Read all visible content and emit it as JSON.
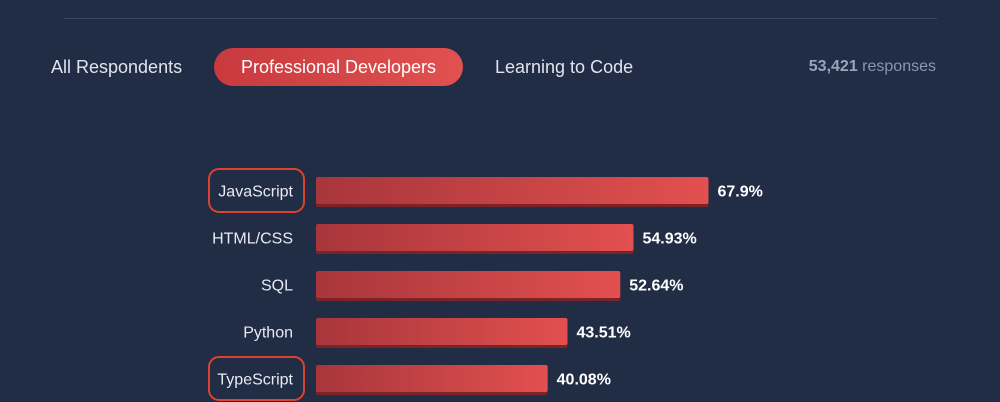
{
  "tabs": {
    "all": "All Respondents",
    "professional": "Professional Developers",
    "learning": "Learning to Code",
    "active": "professional"
  },
  "responses": {
    "count": "53,421",
    "label": "responses"
  },
  "highlighted": [
    "JavaScript",
    "TypeScript"
  ],
  "colors": {
    "background": "#212c45",
    "bar_start": "#a8363b",
    "bar_end": "#e2504f",
    "highlight_outline": "#d9432f"
  },
  "chart_data": {
    "type": "bar",
    "orientation": "horizontal",
    "categories": [
      "JavaScript",
      "HTML/CSS",
      "SQL",
      "Python",
      "TypeScript"
    ],
    "values": [
      67.9,
      54.93,
      52.64,
      43.51,
      40.08
    ],
    "value_labels": [
      "67.9%",
      "54.93%",
      "52.64%",
      "43.51%",
      "40.08%"
    ],
    "unit": "%",
    "xlim": [
      0,
      100
    ],
    "grid": false
  }
}
